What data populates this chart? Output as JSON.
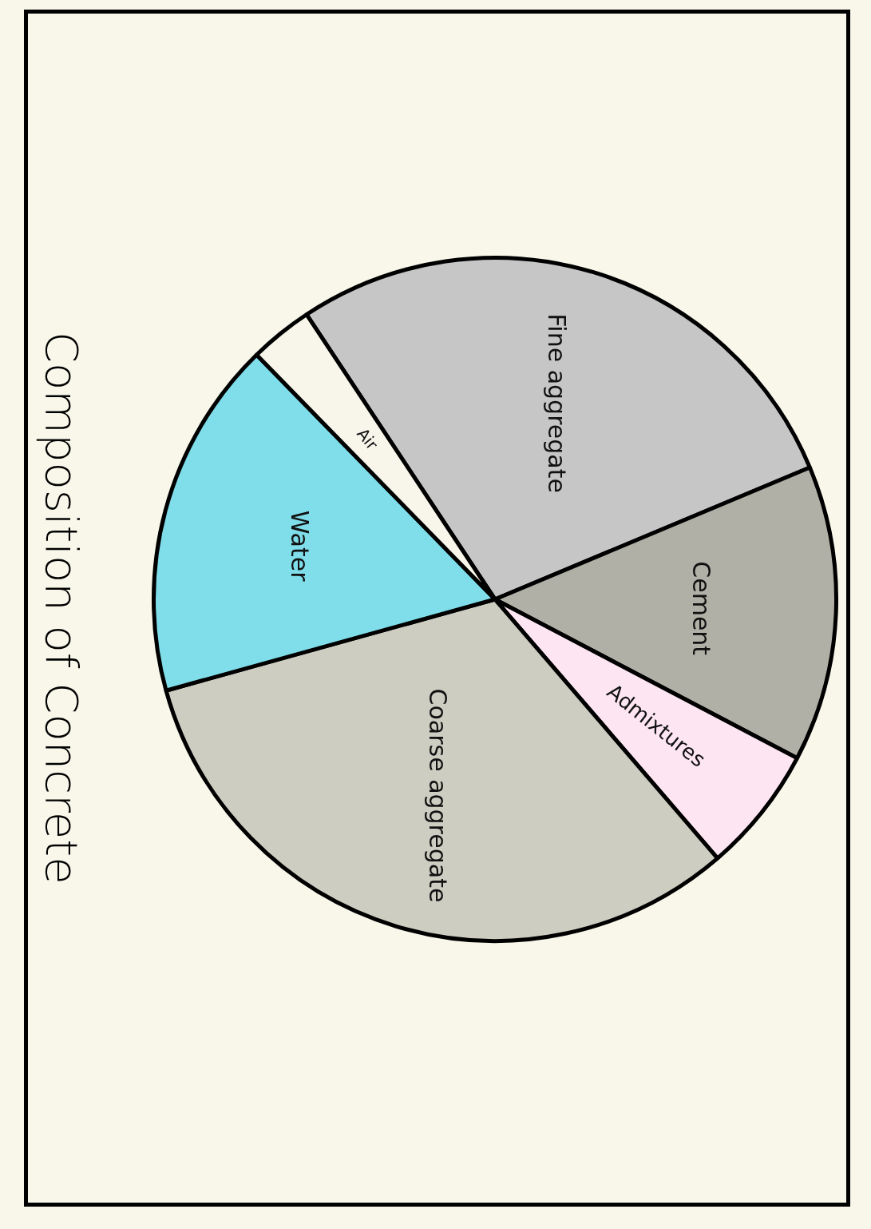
{
  "chart_data": {
    "type": "pie",
    "title": "Composition of Concrete",
    "categories": [
      "Fine aggregate",
      "Cement",
      "Admixtures",
      "Coarse aggregate",
      "Water",
      "Air"
    ],
    "values": [
      28,
      14,
      6,
      32,
      17,
      3
    ],
    "colors": [
      "#c6c6c6",
      "#b0b0a6",
      "#fde6f2",
      "#cdcdc2",
      "#7fdeea",
      "#f8f6ea"
    ]
  }
}
